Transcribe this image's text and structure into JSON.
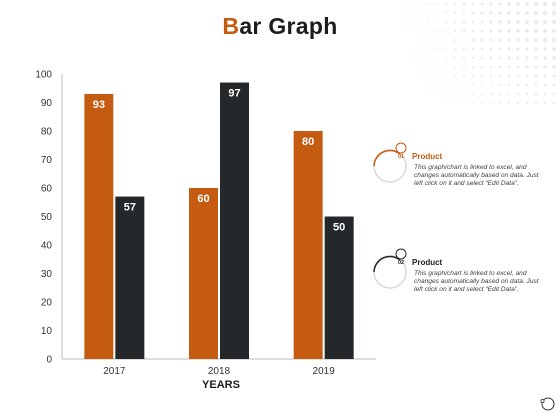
{
  "title": {
    "first": "B",
    "rest": "ar Graph"
  },
  "colors": {
    "accent": "#c55a11",
    "dark": "#25282b",
    "text": "#1c1c1c"
  },
  "chart_data": {
    "type": "bar",
    "title": "Bar Graph",
    "categories": [
      "2017",
      "2018",
      "2019"
    ],
    "series": [
      {
        "values": [
          93,
          60,
          80
        ],
        "color": "#c55a11"
      },
      {
        "values": [
          57,
          97,
          50
        ],
        "color": "#25282b"
      }
    ],
    "xlabel": "YEARS",
    "ylabel": "",
    "ylim": [
      0,
      100
    ],
    "yticks": [
      0,
      10,
      20,
      30,
      40,
      50,
      60,
      70,
      80,
      90,
      100
    ],
    "grid": false,
    "legend": "right"
  },
  "legend": [
    {
      "number": "01",
      "title": "Product",
      "text": "This graph/chart is linked to excel, and changes automatically based on data. Just left click on it and select “Edit Data”.",
      "color": "#c55a11"
    },
    {
      "number": "02",
      "title": "Product",
      "text": "This graph/chart is linked to excel, and changes automatically based on data. Just left click on it and select “Edit Data”.",
      "color": "#25282b"
    }
  ]
}
